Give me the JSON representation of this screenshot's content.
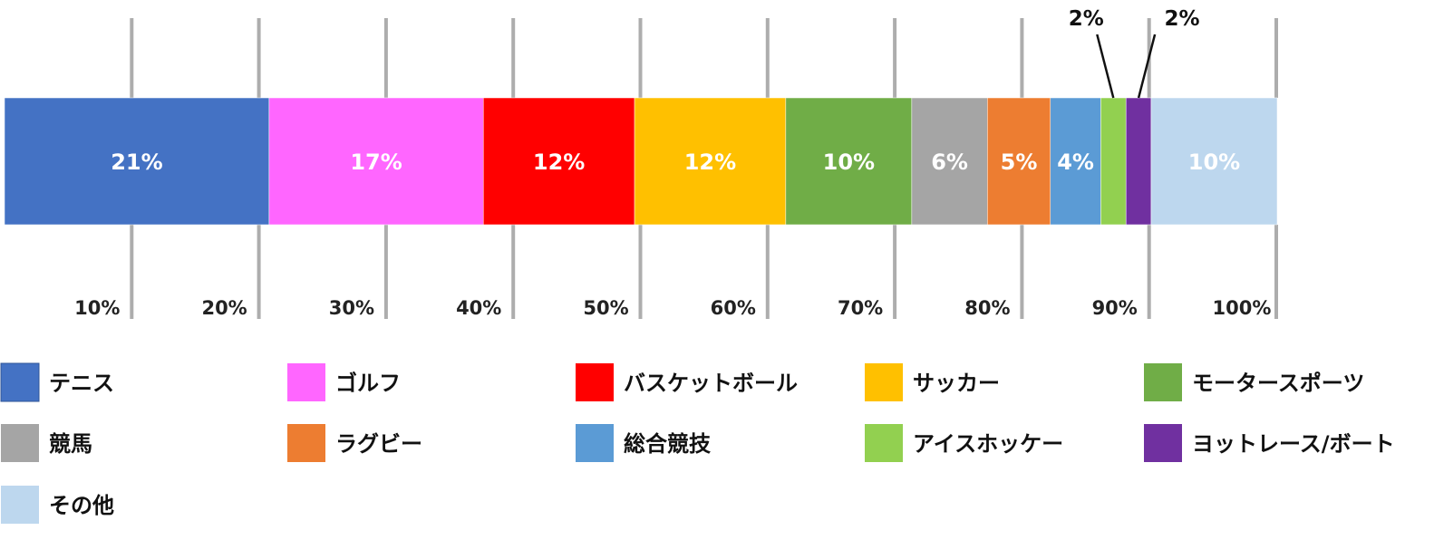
{
  "chart_data": {
    "type": "bar",
    "orientation": "horizontal",
    "stacked": true,
    "normalized": true,
    "xlim": [
      0,
      100
    ],
    "x_ticks": [
      "10%",
      "20%",
      "30%",
      "40%",
      "50%",
      "60%",
      "70%",
      "80%",
      "90%",
      "100%"
    ],
    "grid": true,
    "legend_placement": "bottom",
    "series": [
      {
        "name": "テニス",
        "value": 21,
        "label": "21%",
        "color": "#4472C4",
        "label_color": "#ffffff"
      },
      {
        "name": "ゴルフ",
        "value": 17,
        "label": "17%",
        "color": "#FF66FF",
        "label_color": "#ffffff"
      },
      {
        "name": "バスケットボール",
        "value": 12,
        "label": "12%",
        "color": "#FF0000",
        "label_color": "#ffffff"
      },
      {
        "name": "サッカー",
        "value": 12,
        "label": "12%",
        "color": "#FFC000",
        "label_color": "#ffffff"
      },
      {
        "name": "モータースポーツ",
        "value": 10,
        "label": "10%",
        "color": "#70AD47",
        "label_color": "#ffffff"
      },
      {
        "name": "競馬",
        "value": 6,
        "label": "6%",
        "color": "#A5A5A5",
        "label_color": "#ffffff"
      },
      {
        "name": "ラグビー",
        "value": 5,
        "label": "5%",
        "color": "#ED7D31",
        "label_color": "#ffffff"
      },
      {
        "name": "総合競技",
        "value": 4,
        "label": "4%",
        "color": "#5B9BD5",
        "label_color": "#ffffff"
      },
      {
        "name": "アイスホッケー",
        "value": 2,
        "label": "2%",
        "color": "#92D050",
        "label_color": "#111111",
        "callout": true
      },
      {
        "name": "ヨットレース/ボート",
        "value": 2,
        "label": "2%",
        "color": "#7030A0",
        "label_color": "#111111",
        "callout": true
      },
      {
        "name": "その他",
        "value": 10,
        "label": "10%",
        "color": "#BDD7EE",
        "label_color": "#ffffff"
      }
    ]
  }
}
